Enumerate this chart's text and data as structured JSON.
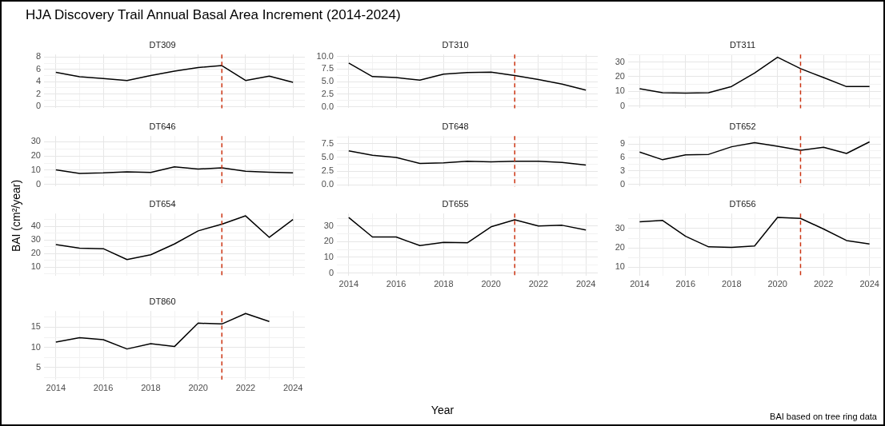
{
  "chart_data": [
    {
      "type": "other",
      "title": "HJA Discovery Trail Annual Basal Area Increment (2014-2024)",
      "xlabel": "Year",
      "ylabel": "BAI (cm²/year)",
      "annotations": [
        "BAI based on tree ring data"
      ]
    },
    {
      "type": "line",
      "title": "DT309",
      "x": [
        2014,
        2015,
        2016,
        2017,
        2018,
        2019,
        2020,
        2021,
        2022,
        2023,
        2024
      ],
      "color": "#000000",
      "values": [
        5.5,
        4.8,
        4.5,
        4.2,
        5.0,
        5.7,
        6.3,
        6.6,
        4.2,
        4.9,
        3.9
      ],
      "xlim": [
        2013.5,
        2024.5
      ],
      "xticks": [
        2014,
        {
          "value": 2015,
          "label": null
        },
        2016,
        {
          "value": 2017,
          "label": null
        },
        2018,
        {
          "value": 2019,
          "label": null
        },
        2020,
        {
          "value": 2021,
          "label": null
        },
        2022,
        {
          "value": 2023,
          "label": null
        },
        2024
      ],
      "ylim": [
        -0.3,
        8.4
      ],
      "yticks": [
        0,
        {
          "value": 1,
          "label": null
        },
        2,
        {
          "value": 3,
          "label": null
        },
        4,
        {
          "value": 5,
          "label": null
        },
        6,
        {
          "value": 7,
          "label": null
        },
        8
      ],
      "grid": true,
      "tick_labels": "y",
      "ref_lines": [
        {
          "axis": "x",
          "value": 2021,
          "color": "#cc3311",
          "line_style": "dashed"
        }
      ]
    },
    {
      "type": "line",
      "title": "DT310",
      "x": [
        2014,
        2015,
        2016,
        2017,
        2018,
        2019,
        2020,
        2021,
        2022,
        2023,
        2024
      ],
      "color": "#000000",
      "values": [
        8.7,
        6.0,
        5.8,
        5.3,
        6.5,
        6.8,
        6.9,
        6.2,
        5.4,
        4.5,
        3.3
      ],
      "xlim": [
        2013.5,
        2024.5
      ],
      "xticks": [
        2014,
        {
          "value": 2015,
          "label": null
        },
        2016,
        {
          "value": 2017,
          "label": null
        },
        2018,
        {
          "value": 2019,
          "label": null
        },
        2020,
        {
          "value": 2021,
          "label": null
        },
        2022,
        {
          "value": 2023,
          "label": null
        },
        2024
      ],
      "ylim": [
        -0.3,
        10.4
      ],
      "yticks": [
        {
          "value": 0,
          "label": "0.0"
        },
        {
          "value": 1.25,
          "label": null
        },
        {
          "value": 2.5,
          "label": "2.5"
        },
        {
          "value": 3.75,
          "label": null
        },
        {
          "value": 5,
          "label": "5.0"
        },
        {
          "value": 6.25,
          "label": null
        },
        {
          "value": 7.5,
          "label": "7.5"
        },
        {
          "value": 8.75,
          "label": null
        },
        {
          "value": 10,
          "label": "10.0"
        }
      ],
      "grid": true,
      "tick_labels": "y",
      "ref_lines": [
        {
          "axis": "x",
          "value": 2021,
          "color": "#cc3311",
          "line_style": "dashed"
        }
      ]
    },
    {
      "type": "line",
      "title": "DT311",
      "x": [
        2014,
        2015,
        2016,
        2017,
        2018,
        2019,
        2020,
        2021,
        2022,
        2023,
        2024
      ],
      "color": "#000000",
      "values": [
        11.8,
        9.0,
        8.7,
        9.0,
        13.3,
        22.5,
        33.3,
        25.5,
        19.4,
        13.2,
        13.3
      ],
      "xlim": [
        2013.5,
        2024.5
      ],
      "xticks": [
        2014,
        {
          "value": 2015,
          "label": null
        },
        2016,
        {
          "value": 2017,
          "label": null
        },
        2018,
        {
          "value": 2019,
          "label": null
        },
        2020,
        {
          "value": 2021,
          "label": null
        },
        2022,
        {
          "value": 2023,
          "label": null
        },
        2024
      ],
      "ylim": [
        -1.6,
        35.2
      ],
      "yticks": [
        0,
        {
          "value": 5,
          "label": null
        },
        10,
        {
          "value": 15,
          "label": null
        },
        20,
        {
          "value": 25,
          "label": null
        },
        30,
        {
          "value": 35,
          "label": null
        }
      ],
      "grid": true,
      "tick_labels": "y",
      "ref_lines": [
        {
          "axis": "x",
          "value": 2021,
          "color": "#cc3311",
          "line_style": "dashed"
        }
      ]
    },
    {
      "type": "line",
      "title": "DT646",
      "x": [
        2014,
        2015,
        2016,
        2017,
        2018,
        2019,
        2020,
        2021,
        2022,
        2023,
        2024
      ],
      "color": "#000000",
      "values": [
        10.2,
        7.7,
        8.1,
        8.9,
        8.4,
        12.3,
        10.8,
        11.6,
        9.2,
        8.6,
        8.2
      ],
      "xlim": [
        2013.5,
        2024.5
      ],
      "xticks": [
        2014,
        {
          "value": 2015,
          "label": null
        },
        2016,
        {
          "value": 2017,
          "label": null
        },
        2018,
        {
          "value": 2019,
          "label": null
        },
        2020,
        {
          "value": 2021,
          "label": null
        },
        2022,
        {
          "value": 2023,
          "label": null
        },
        2024
      ],
      "ylim": [
        -1.5,
        34
      ],
      "yticks": [
        0,
        {
          "value": 5,
          "label": null
        },
        10,
        {
          "value": 15,
          "label": null
        },
        20,
        {
          "value": 25,
          "label": null
        },
        30
      ],
      "grid": true,
      "tick_labels": "y",
      "ref_lines": [
        {
          "axis": "x",
          "value": 2021,
          "color": "#cc3311",
          "line_style": "dashed"
        }
      ]
    },
    {
      "type": "line",
      "title": "DT648",
      "x": [
        2014,
        2015,
        2016,
        2017,
        2018,
        2019,
        2020,
        2021,
        2022,
        2023,
        2024
      ],
      "color": "#000000",
      "values": [
        6.2,
        5.4,
        5.0,
        3.9,
        4.0,
        4.3,
        4.2,
        4.3,
        4.3,
        4.1,
        3.6
      ],
      "xlim": [
        2013.5,
        2024.5
      ],
      "xticks": [
        2014,
        {
          "value": 2015,
          "label": null
        },
        2016,
        {
          "value": 2017,
          "label": null
        },
        2018,
        {
          "value": 2019,
          "label": null
        },
        2020,
        {
          "value": 2021,
          "label": null
        },
        2022,
        {
          "value": 2023,
          "label": null
        },
        2024
      ],
      "ylim": [
        -0.3,
        8.9
      ],
      "yticks": [
        {
          "value": 0,
          "label": "0.0"
        },
        {
          "value": 1.25,
          "label": null
        },
        {
          "value": 2.5,
          "label": "2.5"
        },
        {
          "value": 3.75,
          "label": null
        },
        {
          "value": 5,
          "label": "5.0"
        },
        {
          "value": 6.25,
          "label": null
        },
        {
          "value": 7.5,
          "label": "7.5"
        },
        {
          "value": 8.75,
          "label": null
        }
      ],
      "grid": true,
      "tick_labels": "y",
      "ref_lines": [
        {
          "axis": "x",
          "value": 2021,
          "color": "#cc3311",
          "line_style": "dashed"
        }
      ]
    },
    {
      "type": "line",
      "title": "DT652",
      "x": [
        2014,
        2015,
        2016,
        2017,
        2018,
        2019,
        2020,
        2021,
        2022,
        2023,
        2024
      ],
      "color": "#000000",
      "values": [
        7.2,
        5.5,
        6.6,
        6.7,
        8.4,
        9.3,
        8.5,
        7.6,
        8.3,
        6.9,
        9.5
      ],
      "xlim": [
        2013.5,
        2024.5
      ],
      "xticks": [
        2014,
        {
          "value": 2015,
          "label": null
        },
        2016,
        {
          "value": 2017,
          "label": null
        },
        2018,
        {
          "value": 2019,
          "label": null
        },
        2020,
        {
          "value": 2021,
          "label": null
        },
        2022,
        {
          "value": 2023,
          "label": null
        },
        2024
      ],
      "ylim": [
        -0.5,
        10.8
      ],
      "yticks": [
        0,
        {
          "value": 1.5,
          "label": null
        },
        3,
        {
          "value": 4.5,
          "label": null
        },
        6,
        {
          "value": 7.5,
          "label": null
        },
        9,
        {
          "value": 10.5,
          "label": null
        }
      ],
      "grid": true,
      "tick_labels": "y",
      "ref_lines": [
        {
          "axis": "x",
          "value": 2021,
          "color": "#cc3311",
          "line_style": "dashed"
        }
      ]
    },
    {
      "type": "line",
      "title": "DT654",
      "x": [
        2014,
        2015,
        2016,
        2017,
        2018,
        2019,
        2020,
        2021,
        2022,
        2023,
        2024
      ],
      "color": "#000000",
      "values": [
        26.5,
        23.9,
        23.5,
        15.5,
        19.0,
        27.0,
        36.7,
        41.6,
        47.8,
        31.9,
        45.1
      ],
      "xlim": [
        2013.5,
        2024.5
      ],
      "xticks": [
        2014,
        {
          "value": 2015,
          "label": null
        },
        2016,
        {
          "value": 2017,
          "label": null
        },
        2018,
        {
          "value": 2019,
          "label": null
        },
        2020,
        {
          "value": 2021,
          "label": null
        },
        2022,
        {
          "value": 2023,
          "label": null
        },
        2024
      ],
      "ylim": [
        3.5,
        49.5
      ],
      "yticks": [
        {
          "value": 5,
          "label": null
        },
        10,
        {
          "value": 15,
          "label": null
        },
        20,
        {
          "value": 25,
          "label": null
        },
        30,
        {
          "value": 35,
          "label": null
        },
        40,
        {
          "value": 45,
          "label": null
        }
      ],
      "grid": true,
      "tick_labels": "y",
      "ref_lines": [
        {
          "axis": "x",
          "value": 2021,
          "color": "#cc3311",
          "line_style": "dashed"
        }
      ]
    },
    {
      "type": "line",
      "title": "DT655",
      "x": [
        2014,
        2015,
        2016,
        2017,
        2018,
        2019,
        2020,
        2021,
        2022,
        2023,
        2024
      ],
      "color": "#000000",
      "values": [
        35.5,
        23,
        23,
        17.5,
        19.5,
        19.3,
        29.5,
        34,
        30,
        30.5,
        27.5
      ],
      "xlim": [
        2013.5,
        2024.5
      ],
      "xticks": [
        2014,
        {
          "value": 2015,
          "label": null
        },
        2016,
        {
          "value": 2017,
          "label": null
        },
        2018,
        {
          "value": 2019,
          "label": null
        },
        2020,
        {
          "value": 2021,
          "label": null
        },
        2022,
        {
          "value": 2023,
          "label": null
        },
        2024
      ],
      "ylim": [
        -1.8,
        38
      ],
      "yticks": [
        0,
        {
          "value": 5,
          "label": null
        },
        10,
        {
          "value": 15,
          "label": null
        },
        20,
        {
          "value": 25,
          "label": null
        },
        30,
        {
          "value": 35,
          "label": null
        }
      ],
      "grid": true,
      "ref_lines": [
        {
          "axis": "x",
          "value": 2021,
          "color": "#cc3311",
          "line_style": "dashed"
        }
      ]
    },
    {
      "type": "line",
      "title": "DT656",
      "x": [
        2014,
        2015,
        2016,
        2017,
        2018,
        2019,
        2020,
        2021,
        2022,
        2023,
        2024
      ],
      "color": "#000000",
      "values": [
        33.5,
        34.2,
        26,
        20.5,
        20.2,
        21,
        35.8,
        35.3,
        29.8,
        23.8,
        22
      ],
      "xlim": [
        2013.5,
        2024.5
      ],
      "xticks": [
        2014,
        {
          "value": 2015,
          "label": null
        },
        2016,
        {
          "value": 2017,
          "label": null
        },
        2018,
        {
          "value": 2019,
          "label": null
        },
        2020,
        {
          "value": 2021,
          "label": null
        },
        2022,
        {
          "value": 2023,
          "label": null
        },
        2024
      ],
      "ylim": [
        5.5,
        37.8
      ],
      "yticks": [
        10,
        {
          "value": 15,
          "label": null
        },
        20,
        {
          "value": 25,
          "label": null
        },
        30,
        {
          "value": 35,
          "label": null
        }
      ],
      "grid": true,
      "ref_lines": [
        {
          "axis": "x",
          "value": 2021,
          "color": "#cc3311",
          "line_style": "dashed"
        }
      ]
    },
    {
      "type": "line",
      "title": "DT860",
      "x": [
        2014,
        2015,
        2016,
        2017,
        2018,
        2019,
        2020,
        2021,
        2022,
        2023
      ],
      "color": "#000000",
      "values": [
        11.3,
        12.4,
        11.9,
        9.6,
        10.9,
        10.2,
        16.0,
        15.8,
        18.4,
        16.4
      ],
      "xlim": [
        2013.5,
        2024.5
      ],
      "xticks": [
        2014,
        {
          "value": 2015,
          "label": null
        },
        2016,
        {
          "value": 2017,
          "label": null
        },
        2018,
        {
          "value": 2019,
          "label": null
        },
        2020,
        {
          "value": 2021,
          "label": null
        },
        2022,
        {
          "value": 2023,
          "label": null
        },
        2024
      ],
      "ylim": [
        2,
        19
      ],
      "yticks": [
        {
          "value": 2.5,
          "label": null
        },
        5,
        {
          "value": 7.5,
          "label": null
        },
        10,
        {
          "value": 12.5,
          "label": null
        },
        15,
        {
          "value": 17.5,
          "label": null
        }
      ],
      "grid": true,
      "ref_lines": [
        {
          "axis": "x",
          "value": 2021,
          "color": "#cc3311",
          "line_style": "dashed"
        }
      ]
    }
  ]
}
